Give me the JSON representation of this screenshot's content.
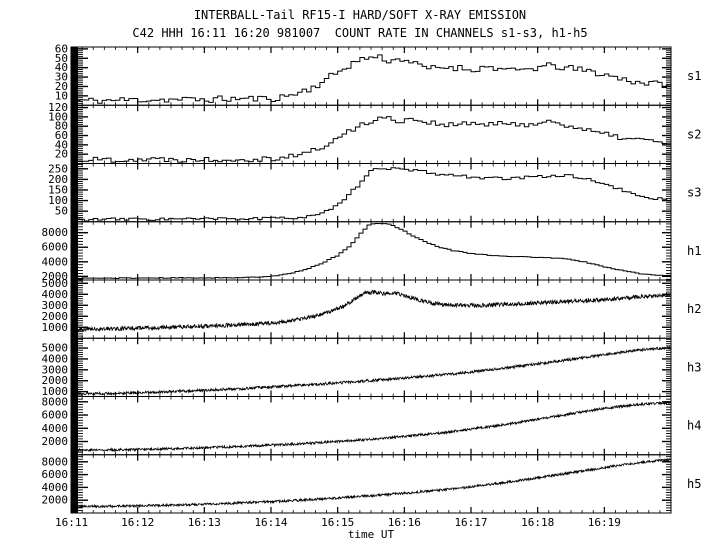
{
  "header": {
    "title": "INTERBALL-Tail RF15-I HARD/SOFT X-RAY EMISSION",
    "subtitle": "C42 HHH 16:11 16:20 981007  COUNT RATE IN CHANNELS s1-s3, h1-h5"
  },
  "colors": {
    "foreground": "#000000",
    "background": "#ffffff"
  },
  "chart_data": {
    "type": "line",
    "title": "INTERBALL-Tail RF15-I HARD/SOFT X-RAY EMISSION",
    "subtitle": "C42 HHH 16:11 16:20 981007  COUNT RATE IN CHANNELS s1-s3, h1-h5",
    "xlabel": "time UT",
    "x_ticks": [
      "16:11",
      "16:12",
      "16:13",
      "16:14",
      "16:15",
      "16:16",
      "16:17",
      "16:18",
      "16:19"
    ],
    "x_range_minutes": [
      0,
      9
    ],
    "x_start": "16:11",
    "x_end": "16:20",
    "grid": false,
    "legend_position": "right-of-each-panel",
    "panels": [
      {
        "label": "s1",
        "style": "step",
        "bins": 135,
        "noise": 3.5,
        "seed": 11,
        "range": [
          0,
          62
        ],
        "yticks": [
          10,
          20,
          30,
          40,
          50,
          60
        ],
        "points": [
          [
            0,
            5
          ],
          [
            0.5,
            5
          ],
          [
            1,
            6
          ],
          [
            1.5,
            6
          ],
          [
            2,
            6
          ],
          [
            2.5,
            7
          ],
          [
            3,
            7
          ],
          [
            3.2,
            9
          ],
          [
            3.4,
            13
          ],
          [
            3.6,
            18
          ],
          [
            3.8,
            26
          ],
          [
            4.0,
            35
          ],
          [
            4.2,
            44
          ],
          [
            4.4,
            50
          ],
          [
            4.6,
            52
          ],
          [
            4.8,
            47
          ],
          [
            5.0,
            50
          ],
          [
            5.2,
            42
          ],
          [
            5.4,
            39
          ],
          [
            5.7,
            41
          ],
          [
            6.0,
            38
          ],
          [
            6.3,
            41
          ],
          [
            6.6,
            36
          ],
          [
            6.9,
            39
          ],
          [
            7.2,
            42
          ],
          [
            7.5,
            39
          ],
          [
            7.8,
            36
          ],
          [
            8.1,
            31
          ],
          [
            8.4,
            26
          ],
          [
            8.7,
            23
          ],
          [
            9.0,
            22
          ]
        ]
      },
      {
        "label": "s2",
        "style": "step",
        "bins": 135,
        "noise": 6,
        "seed": 22,
        "range": [
          0,
          125
        ],
        "yticks": [
          20,
          40,
          60,
          80,
          100,
          120
        ],
        "points": [
          [
            0,
            8
          ],
          [
            1,
            9
          ],
          [
            2,
            9
          ],
          [
            2.8,
            10
          ],
          [
            3.1,
            12
          ],
          [
            3.3,
            16
          ],
          [
            3.5,
            22
          ],
          [
            3.7,
            30
          ],
          [
            3.9,
            45
          ],
          [
            4.1,
            62
          ],
          [
            4.3,
            80
          ],
          [
            4.5,
            92
          ],
          [
            4.7,
            98
          ],
          [
            4.9,
            92
          ],
          [
            5.1,
            96
          ],
          [
            5.4,
            88
          ],
          [
            5.7,
            82
          ],
          [
            6.0,
            86
          ],
          [
            6.3,
            83
          ],
          [
            6.6,
            86
          ],
          [
            6.9,
            84
          ],
          [
            7.2,
            90
          ],
          [
            7.4,
            85
          ],
          [
            7.7,
            72
          ],
          [
            8.0,
            62
          ],
          [
            8.3,
            55
          ],
          [
            8.6,
            50
          ],
          [
            9.0,
            44
          ]
        ]
      },
      {
        "label": "s3",
        "style": "step",
        "bins": 135,
        "noise": 7,
        "seed": 33,
        "range": [
          0,
          275
        ],
        "yticks": [
          50,
          100,
          150,
          200,
          250
        ],
        "points": [
          [
            0,
            10
          ],
          [
            1,
            12
          ],
          [
            2,
            13
          ],
          [
            3,
            15
          ],
          [
            3.3,
            18
          ],
          [
            3.6,
            28
          ],
          [
            3.9,
            55
          ],
          [
            4.1,
            100
          ],
          [
            4.3,
            170
          ],
          [
            4.5,
            235
          ],
          [
            4.65,
            258
          ],
          [
            4.8,
            252
          ],
          [
            5.0,
            245
          ],
          [
            5.3,
            235
          ],
          [
            5.6,
            222
          ],
          [
            5.9,
            215
          ],
          [
            6.2,
            208
          ],
          [
            6.5,
            202
          ],
          [
            6.8,
            208
          ],
          [
            7.1,
            215
          ],
          [
            7.3,
            220
          ],
          [
            7.6,
            212
          ],
          [
            7.9,
            190
          ],
          [
            8.1,
            165
          ],
          [
            8.3,
            145
          ],
          [
            8.5,
            125
          ],
          [
            8.7,
            112
          ],
          [
            9.0,
            100
          ]
        ]
      },
      {
        "label": "h1",
        "style": "step",
        "bins": 150,
        "noise": 50,
        "seed": 44,
        "range": [
          1500,
          9500
        ],
        "yticks": [
          2000,
          4000,
          6000,
          8000
        ],
        "points": [
          [
            0,
            1750
          ],
          [
            0.5,
            1750
          ],
          [
            1,
            1770
          ],
          [
            1.5,
            1780
          ],
          [
            2,
            1800
          ],
          [
            2.5,
            1820
          ],
          [
            2.8,
            1880
          ],
          [
            3.0,
            2000
          ],
          [
            3.2,
            2250
          ],
          [
            3.4,
            2650
          ],
          [
            3.6,
            3200
          ],
          [
            3.8,
            3950
          ],
          [
            4.0,
            4850
          ],
          [
            4.2,
            6300
          ],
          [
            4.35,
            7900
          ],
          [
            4.45,
            8950
          ],
          [
            4.55,
            9250
          ],
          [
            4.7,
            9300
          ],
          [
            4.8,
            9100
          ],
          [
            4.95,
            8500
          ],
          [
            5.1,
            7700
          ],
          [
            5.3,
            6800
          ],
          [
            5.5,
            6100
          ],
          [
            5.7,
            5600
          ],
          [
            6.0,
            5150
          ],
          [
            6.3,
            4900
          ],
          [
            6.6,
            4750
          ],
          [
            7.0,
            4600
          ],
          [
            7.3,
            4500
          ],
          [
            7.5,
            4300
          ],
          [
            7.8,
            3800
          ],
          [
            8.1,
            3100
          ],
          [
            8.4,
            2600
          ],
          [
            8.6,
            2300
          ],
          [
            8.8,
            2150
          ],
          [
            9.0,
            2100
          ]
        ]
      },
      {
        "label": "h2",
        "style": "noisy",
        "noise": 180,
        "seed": 55,
        "range": [
          0,
          5300
        ],
        "yticks": [
          1000,
          2000,
          3000,
          4000,
          5000
        ],
        "points": [
          [
            0,
            800
          ],
          [
            0.5,
            850
          ],
          [
            1,
            920
          ],
          [
            1.5,
            1000
          ],
          [
            2,
            1100
          ],
          [
            2.5,
            1220
          ],
          [
            3,
            1380
          ],
          [
            3.3,
            1580
          ],
          [
            3.6,
            1950
          ],
          [
            3.9,
            2450
          ],
          [
            4.1,
            2950
          ],
          [
            4.25,
            3550
          ],
          [
            4.4,
            4100
          ],
          [
            4.55,
            4200
          ],
          [
            4.7,
            4050
          ],
          [
            4.85,
            4150
          ],
          [
            5.0,
            3900
          ],
          [
            5.2,
            3500
          ],
          [
            5.4,
            3200
          ],
          [
            5.6,
            3050
          ],
          [
            5.9,
            2980
          ],
          [
            6.2,
            3000
          ],
          [
            6.5,
            3080
          ],
          [
            6.9,
            3180
          ],
          [
            7.3,
            3300
          ],
          [
            7.7,
            3420
          ],
          [
            8.1,
            3550
          ],
          [
            8.5,
            3750
          ],
          [
            8.8,
            3900
          ],
          [
            9.0,
            3950
          ]
        ]
      },
      {
        "label": "h3",
        "style": "noisy",
        "noise": 120,
        "seed": 66,
        "range": [
          550,
          5900
        ],
        "yticks": [
          1000,
          2000,
          3000,
          4000,
          5000
        ],
        "points": [
          [
            0,
            800
          ],
          [
            0.5,
            830
          ],
          [
            1,
            900
          ],
          [
            1.5,
            1000
          ],
          [
            2,
            1120
          ],
          [
            2.5,
            1260
          ],
          [
            3,
            1420
          ],
          [
            3.5,
            1600
          ],
          [
            4,
            1800
          ],
          [
            4.5,
            2020
          ],
          [
            5,
            2250
          ],
          [
            5.5,
            2500
          ],
          [
            6,
            2800
          ],
          [
            6.5,
            3150
          ],
          [
            7,
            3550
          ],
          [
            7.5,
            3950
          ],
          [
            8,
            4400
          ],
          [
            8.5,
            4800
          ],
          [
            9.0,
            5050
          ]
        ]
      },
      {
        "label": "h4",
        "style": "noisy",
        "noise": 180,
        "seed": 77,
        "range": [
          0,
          8800
        ],
        "yticks": [
          2000,
          4000,
          6000,
          8000
        ],
        "points": [
          [
            0,
            700
          ],
          [
            0.5,
            730
          ],
          [
            1,
            800
          ],
          [
            1.5,
            900
          ],
          [
            2,
            1050
          ],
          [
            2.5,
            1230
          ],
          [
            3,
            1450
          ],
          [
            3.5,
            1700
          ],
          [
            4,
            2000
          ],
          [
            4.5,
            2350
          ],
          [
            5,
            2750
          ],
          [
            5.5,
            3250
          ],
          [
            6,
            3850
          ],
          [
            6.5,
            4550
          ],
          [
            7,
            5350
          ],
          [
            7.5,
            6200
          ],
          [
            8,
            7000
          ],
          [
            8.4,
            7500
          ],
          [
            8.7,
            7750
          ],
          [
            9.0,
            7800
          ]
        ]
      },
      {
        "label": "h5",
        "style": "noisy",
        "noise": 180,
        "seed": 88,
        "range": [
          0,
          9100
        ],
        "yticks": [
          2000,
          4000,
          6000,
          8000
        ],
        "points": [
          [
            0,
            1000
          ],
          [
            0.5,
            1040
          ],
          [
            1,
            1120
          ],
          [
            1.5,
            1230
          ],
          [
            2,
            1380
          ],
          [
            2.5,
            1560
          ],
          [
            3,
            1780
          ],
          [
            3.5,
            2040
          ],
          [
            4,
            2350
          ],
          [
            4.5,
            2700
          ],
          [
            5,
            3100
          ],
          [
            5.5,
            3550
          ],
          [
            6,
            4100
          ],
          [
            6.5,
            4750
          ],
          [
            7,
            5500
          ],
          [
            7.5,
            6300
          ],
          [
            8,
            7100
          ],
          [
            8.4,
            7700
          ],
          [
            8.7,
            8100
          ],
          [
            9.0,
            8300
          ]
        ]
      }
    ]
  }
}
